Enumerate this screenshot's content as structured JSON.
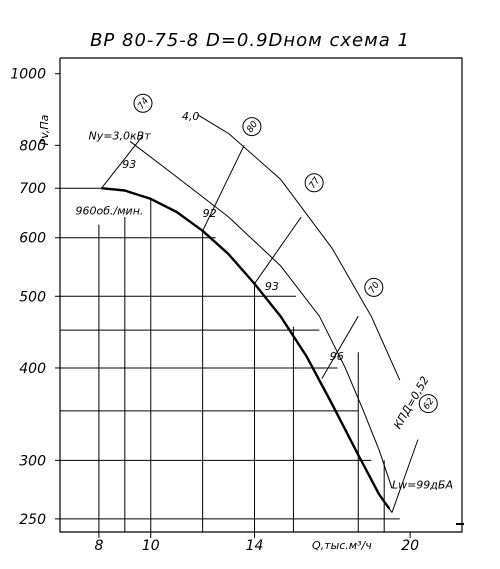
{
  "chart_data": {
    "type": "line",
    "title": "ВР 80-75-8  D=0.9Dном  схема 1",
    "xlabel": "Q,тыс.м³/ч",
    "ylabel": "Pv,Па",
    "x_scale": "linear",
    "y_scale": "log",
    "xlim": [
      6.5,
      22
    ],
    "ylim": [
      240,
      1050
    ],
    "x_ticks": [
      8,
      10,
      14,
      20
    ],
    "x_tick_labels": [
      "8",
      "10",
      "14",
      "20"
    ],
    "y_ticks": [
      250,
      300,
      400,
      500,
      600,
      700,
      800,
      1000
    ],
    "y_tick_labels": [
      "250",
      "300",
      "400",
      "500",
      "600",
      "700",
      "800",
      "1000"
    ],
    "grid_x": [
      8,
      9,
      10,
      12,
      14,
      15.5,
      18,
      19
    ],
    "grid_y": [
      250,
      300,
      350,
      400,
      450,
      500,
      600,
      700
    ],
    "series": [
      {
        "name": "960об./мин.",
        "role": "main",
        "x": [
          8.1,
          9.0,
          10.0,
          11.0,
          12.0,
          13.0,
          14.0,
          15.0,
          16.0,
          17.0,
          18.0,
          18.8,
          19.2
        ],
        "y": [
          700,
          695,
          677,
          650,
          613,
          570,
          520,
          470,
          415,
          357,
          305,
          270,
          258
        ]
      },
      {
        "name": "Ny=3,0кВт",
        "role": "power",
        "x": [
          9.2,
          11.0,
          13.0,
          15.0,
          16.5,
          17.5,
          18.2,
          18.8,
          19.3
        ],
        "y": [
          810,
          725,
          640,
          550,
          470,
          400,
          350,
          310,
          275
        ]
      },
      {
        "name": "4,0",
        "role": "power",
        "x": [
          11.8,
          13.0,
          15.0,
          17.0,
          18.5,
          19.6
        ],
        "y": [
          880,
          830,
          720,
          580,
          470,
          385
        ]
      }
    ],
    "efficiency_lines": [
      {
        "label": "93",
        "x": [
          8.1,
          9.7
        ],
        "y": [
          700,
          825
        ]
      },
      {
        "label": "92",
        "x": [
          12.0,
          13.6
        ],
        "y": [
          613,
          800
        ]
      },
      {
        "label": "93",
        "x": [
          14.0,
          15.8
        ],
        "y": [
          520,
          640
        ]
      },
      {
        "label": "96",
        "x": [
          16.6,
          18.0
        ],
        "y": [
          387,
          470
        ]
      },
      {
        "label": "",
        "x": [
          18.8,
          19.3
        ],
        "y": [
          270,
          255
        ]
      },
      {
        "label": "",
        "x": [
          19.3,
          20.3
        ],
        "y": [
          255,
          320
        ]
      }
    ],
    "noise_markers": [
      {
        "label": "74",
        "x": 9.7,
        "y": 912
      },
      {
        "label": "80",
        "x": 13.9,
        "y": 848
      },
      {
        "label": "77",
        "x": 16.3,
        "y": 712
      },
      {
        "label": "70",
        "x": 18.6,
        "y": 514
      },
      {
        "label": "62",
        "x": 20.7,
        "y": 358
      }
    ],
    "annotations": [
      {
        "text": "Ny=3,0кВт",
        "x": 7.6,
        "y": 815
      },
      {
        "text": "93",
        "x": 8.9,
        "y": 745
      },
      {
        "text": "4,0",
        "x": 11.2,
        "y": 865
      },
      {
        "text": "960об./мин.",
        "x": 7.1,
        "y": 645
      },
      {
        "text": "92",
        "x": 12.0,
        "y": 640
      },
      {
        "text": "93",
        "x": 14.4,
        "y": 510
      },
      {
        "text": "96",
        "x": 16.9,
        "y": 410
      },
      {
        "text": "КПД=0,52",
        "x": 19.6,
        "y": 330
      },
      {
        "text": "Lw=99дБА",
        "x": 19.3,
        "y": 275
      }
    ]
  }
}
